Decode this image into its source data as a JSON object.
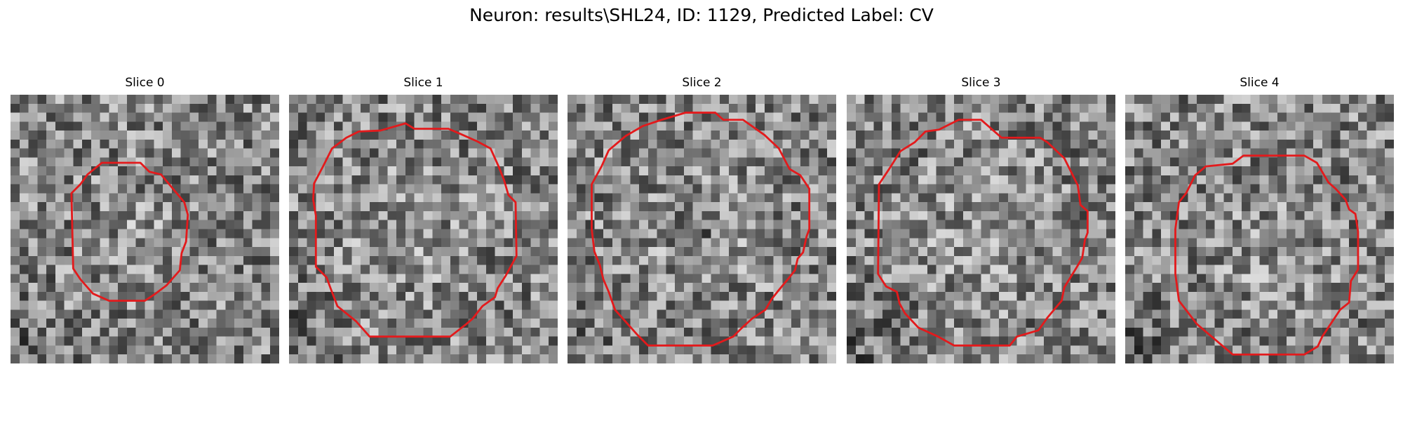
{
  "figure": {
    "title": "Neuron: results\\SHL24, ID: 1129, Predicted Label: CV"
  },
  "colors": {
    "contour": "#e31a1c",
    "background": "#ffffff"
  },
  "panels": [
    {
      "title": "Slice 0"
    },
    {
      "title": "Slice 1"
    },
    {
      "title": "Slice 2"
    },
    {
      "title": "Slice 3"
    },
    {
      "title": "Slice 4"
    }
  ]
}
